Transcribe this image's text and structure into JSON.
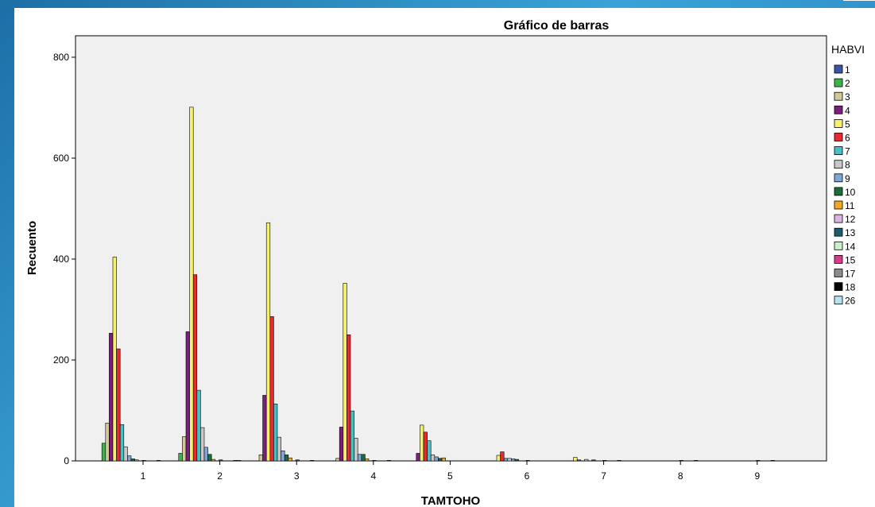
{
  "chart_data": {
    "type": "bar",
    "title": "Gráfico de barras",
    "xlabel": "TAMTOHO",
    "ylabel": "Recuento",
    "categories": [
      "1",
      "2",
      "3",
      "4",
      "5",
      "6",
      "7",
      "8",
      "9"
    ],
    "ylim": [
      0,
      850
    ],
    "yticks": [
      0,
      200,
      400,
      600,
      800
    ],
    "grid": false,
    "plot_background": "#f0f0f0",
    "legend_title": "HABVI",
    "legend_position": "right",
    "series": [
      {
        "name": "1",
        "color": "#3a55a4",
        "values": [
          0,
          0,
          0,
          0,
          0,
          0,
          0,
          0,
          0
        ]
      },
      {
        "name": "2",
        "color": "#3cb44b",
        "values": [
          35,
          15,
          0,
          0,
          0,
          0,
          0,
          0,
          0
        ]
      },
      {
        "name": "3",
        "color": "#d2c89a",
        "values": [
          75,
          48,
          12,
          5,
          0,
          0,
          0,
          0,
          0
        ]
      },
      {
        "name": "4",
        "color": "#7b1f7e",
        "values": [
          253,
          256,
          130,
          67,
          15,
          0,
          0,
          0,
          0
        ]
      },
      {
        "name": "5",
        "color": "#f5f06e",
        "values": [
          404,
          701,
          472,
          352,
          71,
          11,
          7,
          0,
          0
        ]
      },
      {
        "name": "6",
        "color": "#e8292f",
        "values": [
          222,
          369,
          286,
          250,
          57,
          18,
          2,
          0,
          0
        ]
      },
      {
        "name": "7",
        "color": "#45c1c6",
        "values": [
          72,
          140,
          113,
          99,
          40,
          5,
          0,
          0,
          0
        ]
      },
      {
        "name": "8",
        "color": "#c8c8c8",
        "values": [
          28,
          66,
          47,
          45,
          12,
          5,
          3,
          0,
          0
        ]
      },
      {
        "name": "9",
        "color": "#7fa6d6",
        "values": [
          10,
          27,
          20,
          13,
          8,
          4,
          0,
          0,
          0
        ]
      },
      {
        "name": "10",
        "color": "#1e6b3c",
        "values": [
          4,
          13,
          12,
          13,
          5,
          3,
          2,
          0,
          0
        ]
      },
      {
        "name": "11",
        "color": "#f5a623",
        "values": [
          2,
          3,
          6,
          4,
          6,
          0,
          0,
          0,
          0
        ]
      },
      {
        "name": "12",
        "color": "#dbb4e6",
        "values": [
          0,
          0,
          0,
          0,
          0,
          0,
          0,
          0,
          0
        ]
      },
      {
        "name": "13",
        "color": "#1f5c6b",
        "values": [
          1,
          2,
          2,
          1,
          0,
          1,
          1,
          1,
          1
        ]
      },
      {
        "name": "14",
        "color": "#c8f0c8",
        "values": [
          0,
          0,
          0,
          0,
          0,
          0,
          0,
          0,
          0
        ]
      },
      {
        "name": "15",
        "color": "#d63c8c",
        "values": [
          0,
          0,
          0,
          0,
          0,
          0,
          0,
          0,
          0
        ]
      },
      {
        "name": "17",
        "color": "#8c8c8c",
        "values": [
          0,
          0,
          0,
          0,
          0,
          0,
          0,
          0,
          0
        ]
      },
      {
        "name": "18",
        "color": "#000000",
        "values": [
          1,
          1,
          1,
          1,
          0,
          0,
          1,
          1,
          1
        ]
      },
      {
        "name": "26",
        "color": "#b4e4ec",
        "values": [
          0,
          1,
          0,
          0,
          0,
          0,
          0,
          0,
          0
        ]
      }
    ]
  }
}
